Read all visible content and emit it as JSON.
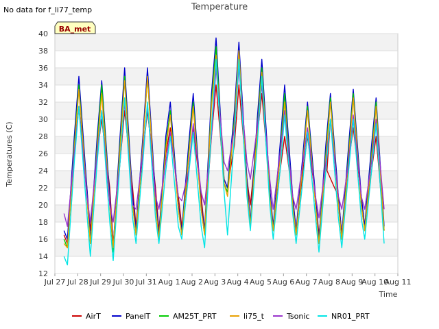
{
  "note": "No data for f_li77_temp",
  "chart_data": {
    "type": "line",
    "title": "Temperature",
    "xlabel": "Time",
    "ylabel": "Temperatures (C)",
    "ylim": [
      12,
      40
    ],
    "xlim": [
      0,
      15
    ],
    "grid": true,
    "legend_position": "bottom",
    "site_tag": "BA_met",
    "yticks": [
      12,
      14,
      16,
      18,
      20,
      22,
      24,
      26,
      28,
      30,
      32,
      34,
      36,
      38,
      40
    ],
    "xticks": [
      {
        "x": 0,
        "label": "Jul 27"
      },
      {
        "x": 1,
        "label": "Jul 28"
      },
      {
        "x": 2,
        "label": "Jul 29"
      },
      {
        "x": 3,
        "label": "Jul 30"
      },
      {
        "x": 4,
        "label": "Jul 31"
      },
      {
        "x": 5,
        "label": "Aug 1"
      },
      {
        "x": 6,
        "label": "Aug 2"
      },
      {
        "x": 7,
        "label": "Aug 3"
      },
      {
        "x": 8,
        "label": "Aug 4"
      },
      {
        "x": 9,
        "label": "Aug 5"
      },
      {
        "x": 10,
        "label": "Aug 6"
      },
      {
        "x": 11,
        "label": "Aug 7"
      },
      {
        "x": 12,
        "label": "Aug 8"
      },
      {
        "x": 13,
        "label": "Aug 9"
      },
      {
        "x": 14,
        "label": "Aug 10"
      },
      {
        "x": 15,
        "label": "Aug 11"
      }
    ],
    "series": [
      {
        "name": "AirT",
        "color": "#cc0000",
        "x": [
          0.4,
          0.55,
          0.85,
          1.05,
          1.4,
          1.55,
          1.85,
          2.05,
          2.4,
          2.55,
          2.85,
          3.05,
          3.4,
          3.55,
          3.85,
          4.05,
          4.4,
          4.55,
          4.85,
          5.05,
          5.4,
          5.55,
          5.85,
          6.05,
          6.4,
          6.55,
          6.85,
          7.05,
          7.4,
          7.55,
          7.85,
          8.05,
          8.4,
          8.55,
          8.85,
          9.05,
          9.4,
          9.55,
          9.85,
          10.05,
          10.4,
          10.55,
          10.85,
          11.05,
          11.4,
          11.55,
          11.85,
          12.05,
          11.9,
          12.4,
          12.55,
          12.85,
          13.05,
          13.4,
          13.55,
          13.85,
          14.05,
          14.4
        ],
        "y": [
          16.5,
          15.5,
          26,
          31.5,
          22,
          17,
          26,
          30,
          22,
          15.5,
          25,
          31,
          22,
          17.5,
          26,
          31,
          22,
          17,
          26,
          29,
          21,
          17.5,
          24,
          29,
          21,
          17,
          28,
          34,
          23,
          22,
          27,
          34,
          23,
          20,
          28,
          33,
          22,
          17,
          24,
          28,
          21,
          17,
          24,
          28,
          21,
          16.5,
          24,
          30,
          24,
          21,
          16.5,
          25,
          29,
          21,
          17.5,
          24,
          28,
          17
        ]
      },
      {
        "name": "PanelT",
        "color": "#0000cc",
        "x": [
          0.4,
          0.55,
          0.85,
          1.05,
          1.4,
          1.55,
          1.85,
          2.05,
          2.4,
          2.55,
          2.85,
          3.05,
          3.4,
          3.55,
          3.85,
          4.05,
          4.4,
          4.55,
          4.85,
          5.05,
          5.4,
          5.55,
          5.85,
          6.05,
          6.4,
          6.55,
          6.85,
          7.05,
          7.4,
          7.55,
          7.85,
          8.05,
          8.4,
          8.55,
          8.85,
          9.05,
          9.4,
          9.55,
          9.85,
          10.05,
          10.4,
          10.55,
          10.85,
          11.05,
          11.4,
          11.55,
          11.85,
          12.05,
          12.4,
          12.55,
          12.85,
          13.05,
          13.4,
          13.55,
          13.85,
          14.05,
          14.4
        ],
        "y": [
          17,
          16,
          28,
          35,
          22,
          16,
          28,
          34.5,
          21,
          15,
          28,
          36,
          21,
          17,
          28,
          36,
          21,
          16.5,
          28,
          32,
          20,
          17,
          27,
          33,
          20,
          17,
          33,
          39.5,
          23,
          22,
          31,
          39,
          23,
          18,
          30,
          37,
          22,
          17.5,
          27,
          34,
          21,
          17,
          26,
          32,
          21,
          16,
          27,
          33,
          21,
          16.5,
          27,
          33.5,
          21,
          17.5,
          27,
          32.5,
          17.5
        ]
      },
      {
        "name": "AM25T_PRT",
        "color": "#00cc00",
        "x": [
          0.4,
          0.55,
          0.85,
          1.05,
          1.4,
          1.55,
          1.85,
          2.05,
          2.4,
          2.55,
          2.85,
          3.05,
          3.4,
          3.55,
          3.85,
          4.05,
          4.4,
          4.55,
          4.85,
          5.05,
          5.4,
          5.55,
          5.85,
          6.05,
          6.4,
          6.55,
          6.85,
          7.05,
          7.4,
          7.55,
          7.85,
          8.05,
          8.4,
          8.55,
          8.85,
          9.05,
          9.4,
          9.55,
          9.85,
          10.05,
          10.4,
          10.55,
          10.85,
          11.05,
          11.4,
          11.55,
          11.85,
          12.05,
          12.4,
          12.55,
          12.85,
          13.05,
          13.4,
          13.55,
          13.85,
          14.05,
          14.4
        ],
        "y": [
          16,
          15,
          27,
          34,
          21,
          15.5,
          27,
          34,
          20,
          14.5,
          27,
          35,
          20,
          16.5,
          27,
          35,
          20,
          16,
          27,
          31,
          19.5,
          16.5,
          26,
          32,
          19.5,
          16.5,
          32,
          38.5,
          22.5,
          21.5,
          30,
          38,
          22,
          17.5,
          29,
          36,
          21,
          17,
          26,
          33,
          20,
          16.5,
          25,
          31.5,
          20,
          15.5,
          26,
          32.5,
          20,
          16,
          26,
          33,
          20,
          17,
          26,
          32,
          17
        ]
      },
      {
        "name": "li75_t",
        "color": "#e8a000",
        "x": [
          0.4,
          0.55,
          0.85,
          1.05,
          1.4,
          1.55,
          1.85,
          2.05,
          2.4,
          2.55,
          2.85,
          3.05,
          3.4,
          3.55,
          3.85,
          4.05,
          4.4,
          4.55,
          4.85,
          5.05,
          5.4,
          5.55,
          5.85,
          6.05,
          6.4,
          6.55,
          6.85,
          7.05,
          7.4,
          7.55,
          7.85,
          8.05,
          8.4,
          8.55,
          8.85,
          9.05,
          9.4,
          9.55,
          9.85,
          10.05,
          10.4,
          10.55,
          10.85,
          11.05,
          11.4,
          11.55,
          11.85,
          12.05,
          12.4,
          12.55,
          12.85,
          13.05,
          13.4,
          13.55,
          13.85,
          14.05,
          14.4
        ],
        "y": [
          15.5,
          15,
          26.5,
          33.5,
          21,
          15.5,
          26.5,
          33,
          20,
          15,
          26.5,
          34.5,
          20,
          16.5,
          27,
          35,
          20,
          16,
          26.5,
          30.5,
          19.5,
          16.5,
          25.5,
          31.5,
          19.5,
          16.5,
          31.5,
          37.5,
          22.5,
          21,
          29.5,
          38,
          22,
          17.5,
          28.5,
          35.5,
          21,
          17,
          25.5,
          32,
          20,
          16.5,
          25,
          31,
          20,
          15.5,
          25.5,
          32,
          20,
          16,
          25.5,
          32.5,
          20,
          17,
          25.5,
          31.5,
          17
        ]
      },
      {
        "name": "Tsonic",
        "color": "#9933cc",
        "x": [
          0.4,
          0.55,
          0.85,
          1.05,
          1.4,
          1.55,
          1.85,
          2.05,
          2.4,
          2.55,
          2.85,
          3.05,
          3.4,
          3.55,
          3.85,
          4.05,
          4.4,
          4.55,
          4.85,
          5.05,
          5.4,
          5.55,
          5.85,
          6.05,
          6.4,
          6.55,
          6.85,
          7.05,
          7.4,
          7.55,
          7.85,
          8.05,
          8.4,
          8.55,
          8.85,
          9.05,
          9.4,
          9.55,
          9.85,
          10.05,
          10.4,
          10.55,
          10.85,
          11.05,
          11.4,
          11.55,
          11.85,
          12.05,
          12.4,
          12.55,
          12.85,
          13.05,
          13.4,
          13.55,
          13.85,
          14.05,
          14.4
        ],
        "y": [
          19,
          17.5,
          26,
          31.5,
          21,
          18,
          26,
          31,
          20,
          18,
          25,
          32,
          20,
          19.5,
          26,
          31.5,
          21,
          19.5,
          25,
          28.5,
          21,
          20.5,
          24,
          29.5,
          21.5,
          20,
          28,
          36,
          25,
          24,
          29,
          36,
          25,
          23,
          29,
          34,
          23,
          19.5,
          26,
          31,
          21,
          19.5,
          25,
          29,
          21,
          18.5,
          25,
          30,
          21,
          19.5,
          25,
          30.5,
          21,
          19.5,
          25,
          30,
          19.5
        ]
      },
      {
        "name": "NR01_PRT",
        "color": "#00e5e5",
        "x": [
          0.4,
          0.55,
          0.85,
          1.05,
          1.4,
          1.55,
          1.85,
          2.05,
          2.4,
          2.55,
          2.85,
          3.05,
          3.4,
          3.55,
          3.85,
          4.05,
          4.4,
          4.55,
          4.85,
          5.05,
          5.4,
          5.55,
          5.85,
          6.05,
          6.4,
          6.55,
          6.85,
          7.05,
          7.4,
          7.55,
          7.85,
          8.05,
          8.4,
          8.55,
          8.85,
          9.05,
          9.4,
          9.55,
          9.85,
          10.05,
          10.4,
          10.55,
          10.85,
          11.05,
          11.4,
          11.55,
          11.85,
          12.05,
          12.4,
          12.55,
          12.85,
          13.05,
          13.4,
          13.55,
          13.85,
          14.05,
          14.4
        ],
        "y": [
          14,
          13,
          25,
          31.5,
          19,
          14,
          25,
          31,
          18,
          13.5,
          25,
          32.5,
          18.5,
          15.5,
          25,
          32,
          18.5,
          15.5,
          24,
          28,
          17.5,
          16,
          23.5,
          28.5,
          17.5,
          15,
          29,
          37,
          21.5,
          16.5,
          28,
          37,
          21,
          17,
          27,
          35,
          20,
          16,
          24,
          30.5,
          19,
          15.5,
          23,
          28.5,
          18.5,
          14.5,
          24,
          30,
          18.5,
          15,
          24,
          30,
          18.5,
          16,
          24,
          29.5,
          15.5
        ]
      }
    ]
  }
}
